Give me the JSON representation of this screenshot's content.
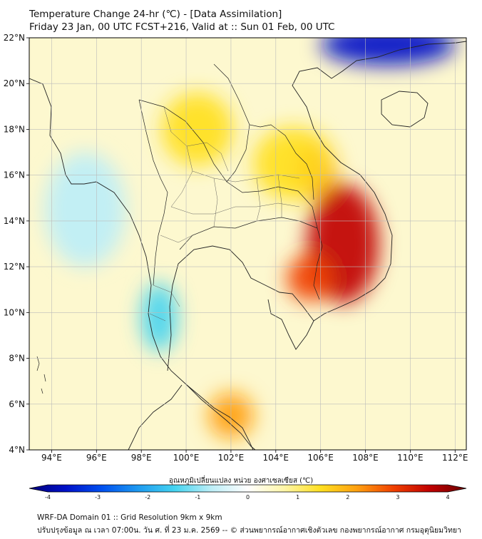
{
  "header": {
    "title_line1": "Temperature Change 24-hr (℃) - [Data Assimilation]",
    "title_line2": "Friday 23 Jan, 00 UTC FCST+216, Valid at :: Sun 01 Feb, 00 UTC"
  },
  "map": {
    "lat_range": [
      4,
      22
    ],
    "lon_range": [
      93,
      112.5
    ],
    "lat_ticks": [
      {
        "value": 4,
        "label": "4°N"
      },
      {
        "value": 6,
        "label": "6°N"
      },
      {
        "value": 8,
        "label": "8°N"
      },
      {
        "value": 10,
        "label": "10°N"
      },
      {
        "value": 12,
        "label": "12°N"
      },
      {
        "value": 14,
        "label": "14°N"
      },
      {
        "value": 16,
        "label": "16°N"
      },
      {
        "value": 18,
        "label": "18°N"
      },
      {
        "value": 20,
        "label": "20°N"
      },
      {
        "value": 22,
        "label": "22°N"
      }
    ],
    "lon_ticks": [
      {
        "value": 94,
        "label": "94°E"
      },
      {
        "value": 96,
        "label": "96°E"
      },
      {
        "value": 98,
        "label": "98°E"
      },
      {
        "value": 100,
        "label": "100°E"
      },
      {
        "value": 102,
        "label": "102°E"
      },
      {
        "value": 104,
        "label": "104°E"
      },
      {
        "value": 106,
        "label": "106°E"
      },
      {
        "value": 108,
        "label": "108°E"
      },
      {
        "value": 110,
        "label": "110°E"
      },
      {
        "value": 112,
        "label": "112°E"
      }
    ],
    "grid": true,
    "anomalies": [
      {
        "lon": 107.0,
        "lat": 13.0,
        "value": 3.2,
        "rx": 1.6,
        "ry": 2.6
      },
      {
        "lon": 105.8,
        "lat": 16.2,
        "value": 2.6,
        "rx": 0.9,
        "ry": 1.2
      },
      {
        "lon": 105.5,
        "lat": 11.5,
        "value": 2.4,
        "rx": 1.0,
        "ry": 1.0
      },
      {
        "lon": 104.8,
        "lat": 16.5,
        "value": 1.4,
        "rx": 1.8,
        "ry": 1.6
      },
      {
        "lon": 109.0,
        "lat": 21.7,
        "value": -3.2,
        "rx": 3.0,
        "ry": 0.9
      },
      {
        "lon": 98.8,
        "lat": 9.8,
        "value": -1.6,
        "rx": 0.8,
        "ry": 1.5
      },
      {
        "lon": 95.5,
        "lat": 14.5,
        "value": -0.9,
        "rx": 1.8,
        "ry": 2.5
      },
      {
        "lon": 102.0,
        "lat": 5.5,
        "value": 1.8,
        "rx": 1.0,
        "ry": 1.0
      },
      {
        "lon": 100.5,
        "lat": 18.0,
        "value": 1.2,
        "rx": 1.6,
        "ry": 1.6
      }
    ]
  },
  "colorbar": {
    "label": "อุณหภูมิเปลี่ยนแปลง หน่วย องศาเซลเซียส (℃)",
    "min": -4,
    "max": 4,
    "ticks": [
      {
        "value": -4,
        "label": "-4"
      },
      {
        "value": -3,
        "label": "-3"
      },
      {
        "value": -2,
        "label": "-2"
      },
      {
        "value": -1,
        "label": "-1"
      },
      {
        "value": 0,
        "label": "0"
      },
      {
        "value": 1,
        "label": "1"
      },
      {
        "value": 2,
        "label": "2"
      },
      {
        "value": 3,
        "label": "3"
      },
      {
        "value": 4,
        "label": "4"
      }
    ],
    "colors": [
      "#00007a",
      "#0010c8",
      "#0050f0",
      "#1e9bf0",
      "#45d4f0",
      "#bdeef7",
      "#ffffff",
      "#fff6a8",
      "#ffdf20",
      "#ffa010",
      "#f04000",
      "#c00000",
      "#6a0000"
    ]
  },
  "footer": {
    "line1": "WRF-DA Domain 01 :: Grid Resolution 9km x 9km",
    "line2": "ปรับปรุงข้อมูล ณ เวลา 07:00น. วัน ศ. ที่ 23 ม.ค. 2569 -- © ส่วนพยากรณ์อากาศเชิงตัวเลข กองพยากรณ์อากาศ กรมอุตุนิยมวิทยา"
  }
}
